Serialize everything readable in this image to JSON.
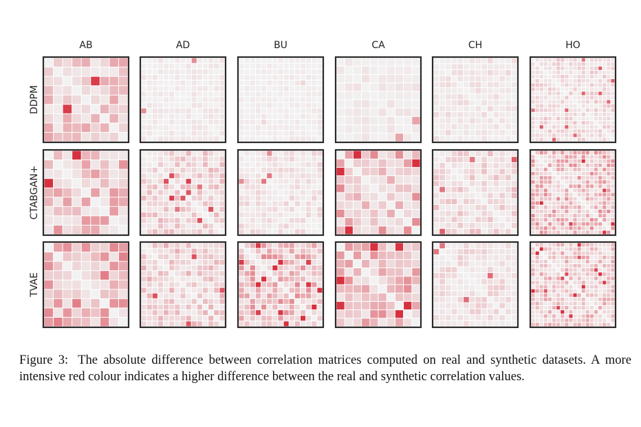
{
  "figure": {
    "columns": [
      "AB",
      "AD",
      "BU",
      "CA",
      "CH",
      "HO"
    ],
    "rows": [
      "DDPM",
      "CTABGAN+",
      "TVAE"
    ]
  },
  "chart_data": {
    "type": "heatmap",
    "description_text_only_from_figure": true,
    "columns": [
      "AB",
      "AD",
      "BU",
      "CA",
      "CH",
      "HO"
    ],
    "rows": [
      "DDPM",
      "CTABGAN+",
      "TVAE"
    ],
    "grid_sizes": {
      "AB": 9,
      "AD": 15,
      "BU": 15,
      "CA": 10,
      "CH": 14,
      "HO": 20
    },
    "color_low": "#f2f2f2",
    "color_high": "#d7303f",
    "intensity_by_panel": {
      "DDPM": {
        "AB": 0.22,
        "AD": 0.05,
        "BU": 0.04,
        "CA": 0.05,
        "CH": 0.08,
        "HO": 0.14
      },
      "CTABGAN+": {
        "AB": 0.28,
        "AD": 0.18,
        "BU": 0.1,
        "CA": 0.3,
        "CH": 0.16,
        "HO": 0.3
      },
      "TVAE": {
        "AB": 0.35,
        "AD": 0.2,
        "BU": 0.3,
        "CA": 0.3,
        "CH": 0.12,
        "HO": 0.24
      }
    }
  },
  "caption": {
    "label": "Figure 3:",
    "text": "The absolute difference between correlation matrices computed on real and synthetic datasets. A more intensive red colour indicates a higher difference between the real and synthetic correlation values."
  }
}
